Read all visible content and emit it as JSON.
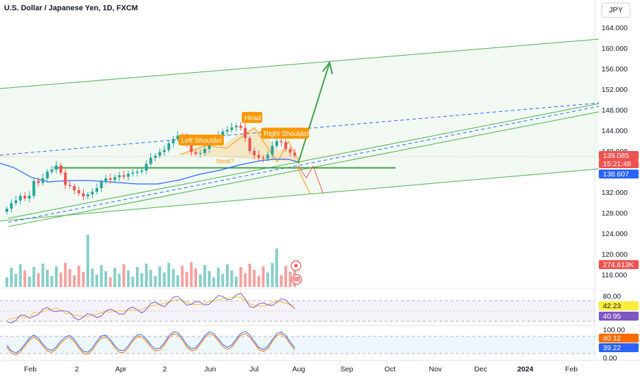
{
  "header": {
    "title": "U.S. Dollar / Japanese Yen, 1D, FXCM",
    "currency": "JPY"
  },
  "colors": {
    "up": "#26a69a",
    "down": "#ef5350",
    "channel": "#4caf50",
    "channel_fill": "#e8f5e9",
    "ema": "#2962ff",
    "dashed": "#2962ff",
    "pattern": "#ff9800",
    "rsi": "#7e57c2",
    "stoch_k": "#2962ff",
    "stoch_d": "#ff6d00"
  },
  "chart_data": [
    {
      "type": "candlestick",
      "title": "U.S. Dollar / Japanese Yen, 1D, FXCM",
      "x_ticks": [
        "Feb",
        "2",
        "Apr",
        "2",
        "Jun",
        "Jul",
        "Aug",
        "Sep",
        "Oct",
        "Nov",
        "Dec",
        "2024",
        "Feb"
      ],
      "y_ticks": [
        "164.000",
        "160.000",
        "156.000",
        "152.000",
        "148.000",
        "144.000",
        "140.000",
        "136.000",
        "132.000",
        "128.000",
        "124.000",
        "120.000",
        "116.000"
      ],
      "ylim": [
        114.5,
        165.5
      ],
      "close_series": [
        128.8,
        129.9,
        130.4,
        131.3,
        130.8,
        131.3,
        134.2,
        133.8,
        134.7,
        136.0,
        136.4,
        137.2,
        135.8,
        133.4,
        133.2,
        132.4,
        131.8,
        131.2,
        131.6,
        132.1,
        132.8,
        134.0,
        134.7,
        134.4,
        134.9,
        135.3,
        135.0,
        135.6,
        135.8,
        136.0,
        136.2,
        137.5,
        138.7,
        139.1,
        139.8,
        140.2,
        141.5,
        142.3,
        143.0,
        142.8,
        141.2,
        139.8,
        139.5,
        139.6,
        140.4,
        141.7,
        142.1,
        143.0,
        143.8,
        144.1,
        144.6,
        144.9,
        144.5,
        142.5,
        140.0,
        139.2,
        138.7,
        138.5,
        139.3,
        141.0,
        141.9,
        141.7,
        140.4,
        139.7,
        139.1
      ],
      "horizontal_level": 137.0,
      "last_price": "139.085",
      "countdown": "15:21:48",
      "ema_value": "138.607",
      "volume_value": "274.613K",
      "annotations": [
        "Left Shoulder",
        "Head",
        "Right Shoulder",
        "Neck?"
      ]
    },
    {
      "type": "line",
      "name": "RSI",
      "y_ticks": [
        "80.00"
      ],
      "values": [
        "42.23",
        "40.95"
      ]
    },
    {
      "type": "line",
      "name": "Stochastic",
      "y_ticks": [
        "100.00",
        "0.00"
      ],
      "values": [
        "40.12",
        "39.22"
      ]
    }
  ]
}
